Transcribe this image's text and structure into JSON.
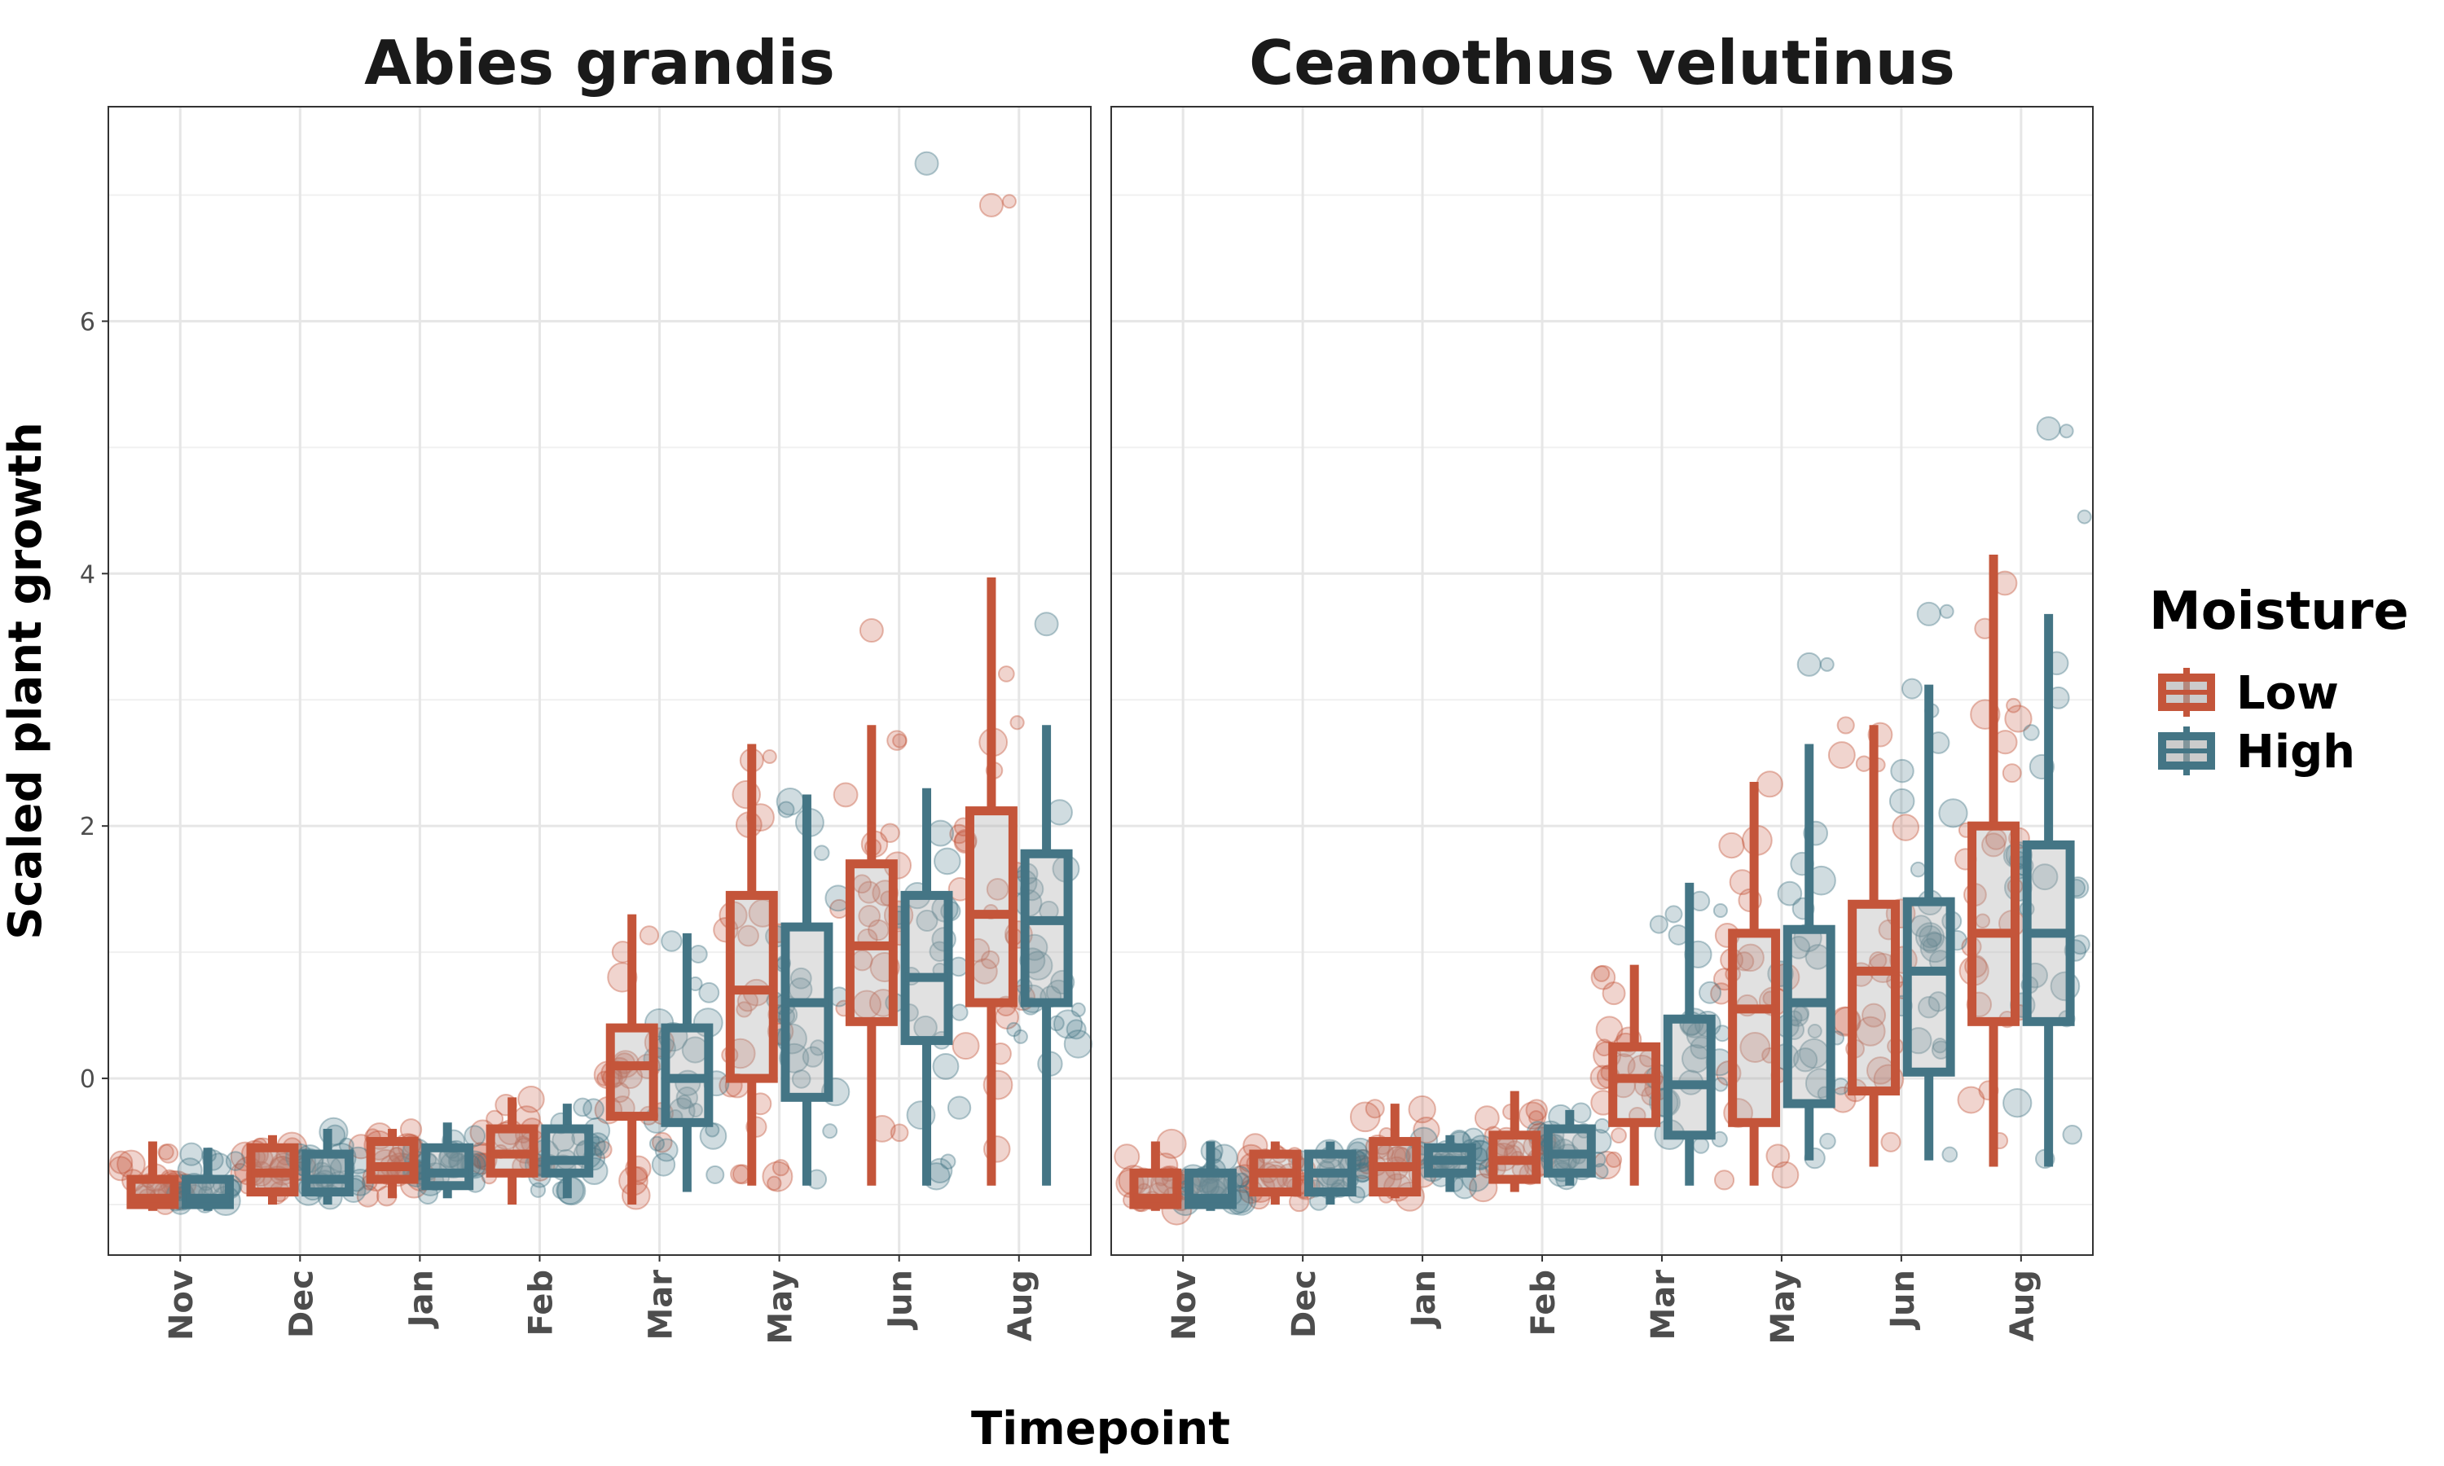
{
  "chart_data": {
    "type": "box",
    "ylabel": "Scaled plant growth",
    "xlabel": "Timepoint",
    "categories": [
      "Nov",
      "Dec",
      "Jan",
      "Feb",
      "Mar",
      "May",
      "Jun",
      "Aug"
    ],
    "yticks": [
      0,
      2,
      4,
      6
    ],
    "ylim": [
      -1.4,
      7.7
    ],
    "grid": true,
    "legend": {
      "title": "Moisture",
      "placement": "right",
      "entries": [
        {
          "name": "Low",
          "color": "#c4553a"
        },
        {
          "name": "High",
          "color": "#447585"
        }
      ]
    },
    "panels": [
      {
        "title": "Abies grandis",
        "series": [
          {
            "name": "Low",
            "color": "#c4553a",
            "boxes": [
              {
                "min": -1.05,
                "q1": -1.0,
                "median": -0.95,
                "q3": -0.8,
                "max": -0.5
              },
              {
                "min": -1.0,
                "q1": -0.9,
                "median": -0.75,
                "q3": -0.55,
                "max": -0.45
              },
              {
                "min": -0.95,
                "q1": -0.8,
                "median": -0.7,
                "q3": -0.5,
                "max": -0.4
              },
              {
                "min": -1.0,
                "q1": -0.75,
                "median": -0.6,
                "q3": -0.4,
                "max": -0.15
              },
              {
                "min": -1.0,
                "q1": -0.3,
                "median": 0.1,
                "q3": 0.4,
                "max": 1.3
              },
              {
                "min": -0.85,
                "q1": 0.0,
                "median": 0.7,
                "q3": 1.45,
                "max": 2.65
              },
              {
                "min": -0.85,
                "q1": 0.45,
                "median": 1.05,
                "q3": 1.7,
                "max": 2.8
              },
              {
                "min": -0.85,
                "q1": 0.6,
                "median": 1.3,
                "q3": 2.12,
                "max": 3.97
              }
            ],
            "outliers": [
              [
                2.52,
                2.55
              ],
              [
                3.55
              ],
              [
                6.92,
                6.95
              ]
            ]
          },
          {
            "name": "High",
            "color": "#447585",
            "boxes": [
              {
                "min": -1.05,
                "q1": -1.0,
                "median": -0.95,
                "q3": -0.8,
                "max": -0.55
              },
              {
                "min": -1.0,
                "q1": -0.9,
                "median": -0.8,
                "q3": -0.6,
                "max": -0.4
              },
              {
                "min": -0.95,
                "q1": -0.85,
                "median": -0.75,
                "q3": -0.55,
                "max": -0.35
              },
              {
                "min": -0.95,
                "q1": -0.75,
                "median": -0.65,
                "q3": -0.4,
                "max": -0.2
              },
              {
                "min": -0.9,
                "q1": -0.35,
                "median": 0.0,
                "q3": 0.4,
                "max": 1.15
              },
              {
                "min": -0.85,
                "q1": -0.15,
                "median": 0.6,
                "q3": 1.2,
                "max": 2.25
              },
              {
                "min": -0.85,
                "q1": 0.3,
                "median": 0.8,
                "q3": 1.45,
                "max": 2.3
              },
              {
                "min": -0.85,
                "q1": 0.6,
                "median": 1.25,
                "q3": 1.78,
                "max": 2.8
              }
            ],
            "outliers": [
              [
                7.25
              ],
              [
                3.6
              ]
            ]
          }
        ]
      },
      {
        "title": "Ceanothus velutinus",
        "series": [
          {
            "name": "Low",
            "color": "#c4553a",
            "boxes": [
              {
                "min": -1.05,
                "q1": -1.0,
                "median": -0.95,
                "q3": -0.75,
                "max": -0.5
              },
              {
                "min": -1.0,
                "q1": -0.9,
                "median": -0.75,
                "q3": -0.6,
                "max": -0.5
              },
              {
                "min": -0.95,
                "q1": -0.9,
                "median": -0.7,
                "q3": -0.5,
                "max": -0.2
              },
              {
                "min": -0.9,
                "q1": -0.8,
                "median": -0.65,
                "q3": -0.45,
                "max": -0.1
              },
              {
                "min": -0.85,
                "q1": -0.35,
                "median": 0.0,
                "q3": 0.25,
                "max": 0.9
              },
              {
                "min": -0.85,
                "q1": -0.35,
                "median": 0.55,
                "q3": 1.15,
                "max": 2.35
              },
              {
                "min": -0.7,
                "q1": -0.1,
                "median": 0.85,
                "q3": 1.38,
                "max": 2.8
              },
              {
                "min": -0.7,
                "q1": 0.45,
                "median": 1.15,
                "q3": 2.0,
                "max": 4.15
              }
            ],
            "outliers": [
              [
                0.5
              ],
              [
                1.85
              ]
            ]
          },
          {
            "name": "High",
            "color": "#447585",
            "boxes": [
              {
                "min": -1.05,
                "q1": -1.0,
                "median": -0.95,
                "q3": -0.75,
                "max": -0.5
              },
              {
                "min": -1.0,
                "q1": -0.9,
                "median": -0.75,
                "q3": -0.6,
                "max": -0.5
              },
              {
                "min": -0.9,
                "q1": -0.75,
                "median": -0.65,
                "q3": -0.55,
                "max": -0.45
              },
              {
                "min": -0.85,
                "q1": -0.75,
                "median": -0.6,
                "q3": -0.4,
                "max": -0.25
              },
              {
                "min": -0.85,
                "q1": -0.45,
                "median": -0.05,
                "q3": 0.47,
                "max": 1.55
              },
              {
                "min": -0.65,
                "q1": -0.2,
                "median": 0.6,
                "q3": 1.18,
                "max": 2.65
              },
              {
                "min": -0.65,
                "q1": 0.05,
                "median": 0.85,
                "q3": 1.4,
                "max": 3.12
              },
              {
                "min": -0.7,
                "q1": 0.45,
                "median": 1.15,
                "q3": 1.85,
                "max": 3.68
              }
            ],
            "outliers": [
              [
                3.28,
                3.28
              ],
              [
                3.68,
                3.7
              ],
              [
                5.15,
                5.13,
                4.45
              ]
            ]
          }
        ]
      }
    ]
  }
}
